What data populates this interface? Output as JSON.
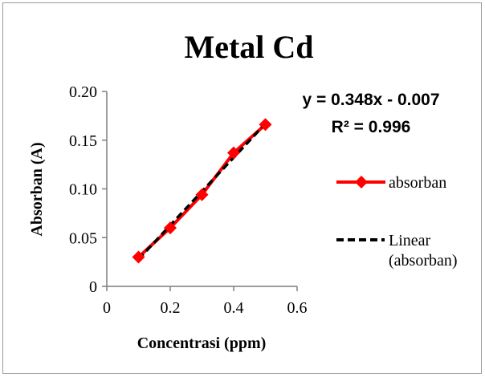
{
  "chart_data": {
    "type": "line",
    "title": "Metal Cd",
    "xlabel": "Concentrasi (ppm)",
    "ylabel": "Absorban (A)",
    "xlim": [
      0,
      0.6
    ],
    "ylim": [
      0,
      0.2
    ],
    "x_ticks": [
      "0",
      "0.2",
      "0.4",
      "0.6"
    ],
    "y_ticks": [
      "0",
      "0.05",
      "0.10",
      "0.15",
      "0.20"
    ],
    "grid": false,
    "legend_position": "right",
    "series": [
      {
        "name": "absorban",
        "kind": "data",
        "color": "#ff0000",
        "marker": "diamond",
        "x": [
          0.1,
          0.2,
          0.3,
          0.4,
          0.5
        ],
        "y": [
          0.03,
          0.06,
          0.094,
          0.137,
          0.166
        ]
      },
      {
        "name": "Linear (absorban)",
        "kind": "trendline",
        "color": "#000000",
        "line_style": "dashed",
        "x": [
          0.1,
          0.5
        ],
        "y": [
          0.0278,
          0.167
        ]
      }
    ],
    "annotation": {
      "equation": "y = 0.348x - 0.007",
      "r_squared": "R² = 0.996"
    },
    "legend": {
      "data_label": "absorban",
      "trend_label_line1": "Linear",
      "trend_label_line2": "(absorban)"
    }
  }
}
